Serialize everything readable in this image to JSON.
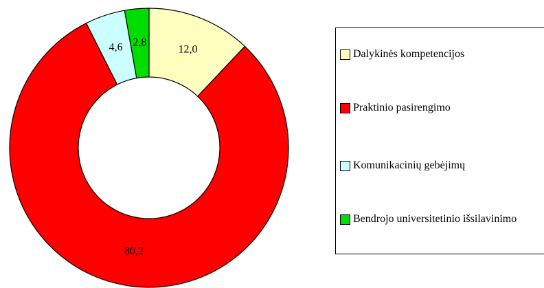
{
  "chart_data": {
    "type": "donut",
    "categories": [
      "Dalykinės kompetencijos",
      "Praktinio pasirengimo",
      "Komunikacinių gebėjimų",
      "Bendrojo universitetinio išsilavinimo"
    ],
    "values": [
      12.0,
      80.2,
      4.6,
      2.8
    ],
    "value_labels": [
      "12,0",
      "80,2",
      "4,6",
      "2,8"
    ],
    "colors": [
      "#ffffc0",
      "#ff0000",
      "#ccffff",
      "#00dd00"
    ]
  }
}
